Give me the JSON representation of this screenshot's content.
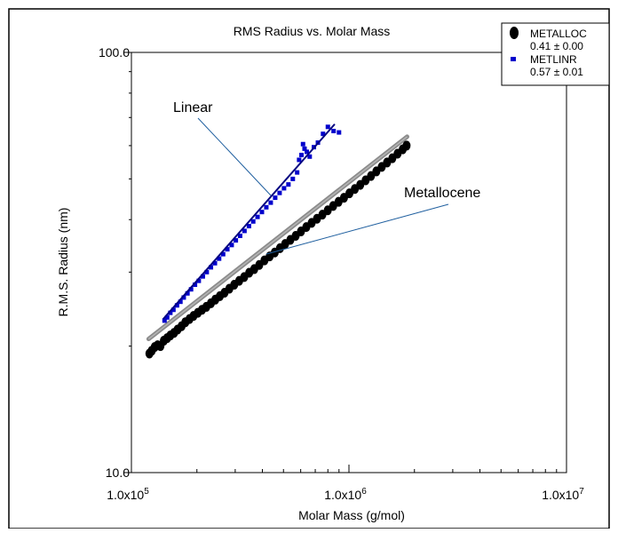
{
  "chart_data": {
    "type": "scatter",
    "title": "RMS Radius vs. Molar Mass",
    "xlabel": "Molar Mass (g/mol)",
    "ylabel": "R.M.S. Radius (nm)",
    "xscale": "log",
    "yscale": "log",
    "xlim": [
      100000,
      10000000
    ],
    "ylim": [
      10,
      100
    ],
    "xticks": [
      {
        "value": 100000,
        "mantissa": "1.0x10",
        "exp": "5"
      },
      {
        "value": 1000000,
        "mantissa": "1.0x10",
        "exp": "6"
      },
      {
        "value": 10000000,
        "mantissa": "1.0x10",
        "exp": "7"
      }
    ],
    "yticks": [
      {
        "value": 10,
        "label": "10.0"
      },
      {
        "value": 100,
        "label": "100.0"
      }
    ],
    "grid": false,
    "legend_position": "top-right",
    "series": [
      {
        "name": "METALLOC",
        "slope_label": "0.41 ± 0.00",
        "color": "#000000",
        "marker": "ellipse",
        "fit": {
          "x": [
            120000,
            1850000
          ],
          "y": [
            20.8,
            63.0
          ]
        },
        "points": [
          [
            121000,
            19.2
          ],
          [
            124000,
            19.5
          ],
          [
            128000,
            19.9
          ],
          [
            132000,
            20.1
          ],
          [
            136000,
            20.0
          ],
          [
            141000,
            20.6
          ],
          [
            146000,
            20.9
          ],
          [
            151000,
            21.2
          ],
          [
            157000,
            21.5
          ],
          [
            163000,
            21.9
          ],
          [
            170000,
            22.3
          ],
          [
            177000,
            22.8
          ],
          [
            185000,
            23.2
          ],
          [
            193000,
            23.6
          ],
          [
            202000,
            24.0
          ],
          [
            211000,
            24.4
          ],
          [
            221000,
            24.8
          ],
          [
            232000,
            25.3
          ],
          [
            243000,
            25.8
          ],
          [
            255000,
            26.3
          ],
          [
            268000,
            26.8
          ],
          [
            282000,
            27.4
          ],
          [
            297000,
            28.0
          ],
          [
            313000,
            28.6
          ],
          [
            330000,
            29.2
          ],
          [
            348000,
            29.9
          ],
          [
            367000,
            30.5
          ],
          [
            387000,
            31.2
          ],
          [
            409000,
            32.0
          ],
          [
            432000,
            32.7
          ],
          [
            456000,
            33.4
          ],
          [
            482000,
            34.2
          ],
          [
            509000,
            35.0
          ],
          [
            538000,
            35.8
          ],
          [
            569000,
            36.6
          ],
          [
            602000,
            37.5
          ],
          [
            637000,
            38.4
          ],
          [
            674000,
            39.3
          ],
          [
            713000,
            40.2
          ],
          [
            755000,
            41.1
          ],
          [
            799000,
            42.1
          ],
          [
            846000,
            43.1
          ],
          [
            896000,
            44.1
          ],
          [
            949000,
            45.1
          ],
          [
            1005000,
            46.2
          ],
          [
            1064000,
            47.3
          ],
          [
            1127000,
            48.4
          ],
          [
            1193000,
            49.6
          ],
          [
            1263000,
            50.8
          ],
          [
            1337000,
            52.1
          ],
          [
            1415000,
            53.4
          ],
          [
            1497000,
            54.7
          ],
          [
            1583000,
            56.0
          ],
          [
            1673000,
            57.4
          ],
          [
            1767000,
            58.8
          ],
          [
            1840000,
            60.0
          ]
        ]
      },
      {
        "name": "METLINR",
        "slope_label": "0.57 ± 0.01",
        "color": "#0000cc",
        "marker": "square",
        "fit": {
          "x": [
            140000,
            860000
          ],
          "y": [
            23.2,
            67.5
          ]
        },
        "points": [
          [
            142000,
            23.0
          ],
          [
            146000,
            23.4
          ],
          [
            151000,
            24.0
          ],
          [
            156000,
            24.4
          ],
          [
            162000,
            25.0
          ],
          [
            168000,
            25.5
          ],
          [
            174000,
            26.1
          ],
          [
            181000,
            26.7
          ],
          [
            188000,
            27.3
          ],
          [
            196000,
            28.0
          ],
          [
            204000,
            28.6
          ],
          [
            213000,
            29.3
          ],
          [
            222000,
            30.0
          ],
          [
            232000,
            30.8
          ],
          [
            242000,
            31.5
          ],
          [
            253000,
            32.3
          ],
          [
            264000,
            33.1
          ],
          [
            276000,
            34.0
          ],
          [
            289000,
            34.8
          ],
          [
            302000,
            35.7
          ],
          [
            316000,
            36.6
          ],
          [
            331000,
            37.6
          ],
          [
            347000,
            38.6
          ],
          [
            363000,
            39.6
          ],
          [
            380000,
            40.6
          ],
          [
            398000,
            41.7
          ],
          [
            417000,
            42.8
          ],
          [
            437000,
            43.9
          ],
          [
            458000,
            45.1
          ],
          [
            480000,
            46.3
          ],
          [
            503000,
            47.5
          ],
          [
            527000,
            48.5
          ],
          [
            552000,
            50.0
          ],
          [
            578000,
            51.8
          ],
          [
            590000,
            55.5
          ],
          [
            605000,
            57.0
          ],
          [
            615000,
            60.5
          ],
          [
            625000,
            59.0
          ],
          [
            640000,
            58.0
          ],
          [
            660000,
            56.5
          ],
          [
            690000,
            59.5
          ],
          [
            720000,
            61.0
          ],
          [
            760000,
            64.0
          ],
          [
            800000,
            66.5
          ],
          [
            850000,
            65.0
          ],
          [
            900000,
            64.5
          ]
        ]
      }
    ],
    "annotations": [
      {
        "text": "Linear",
        "target_series": "METLINR"
      },
      {
        "text": "Metallocene",
        "target_series": "METALLOC"
      }
    ]
  }
}
